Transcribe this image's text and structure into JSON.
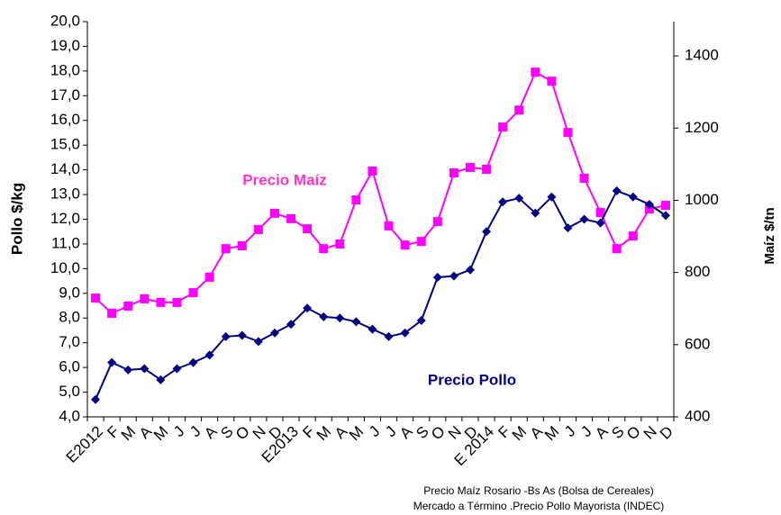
{
  "chart_data": {
    "type": "line",
    "categories": [
      "E2012",
      "F",
      "M",
      "A",
      "M",
      "J",
      "J",
      "A",
      "S",
      "O",
      "N",
      "D",
      "E2013",
      "F",
      "M",
      "A",
      "M",
      "J",
      "J",
      "A",
      "S",
      "O",
      "N",
      "D",
      "E 2014",
      "F",
      "M",
      "A",
      "M",
      "J",
      "J",
      "A",
      "S",
      "O",
      "N",
      "D"
    ],
    "series": [
      {
        "name": "Precio Maíz",
        "color": "#ff00ff",
        "marker": "square",
        "axis": "y2",
        "values": [
          729,
          687,
          707,
          727,
          717,
          717,
          744,
          787,
          866,
          874,
          919,
          964,
          949,
          921,
          866,
          879,
          1001,
          1081,
          929,
          876,
          886,
          941,
          1076,
          1091,
          1086,
          1203,
          1250,
          1355,
          1330,
          1188,
          1061,
          966,
          866,
          901,
          976,
          986
        ]
      },
      {
        "name": "Precio Pollo",
        "color": "#000080",
        "marker": "diamond",
        "values": [
          4.7,
          6.2,
          5.9,
          5.95,
          5.5,
          5.95,
          6.2,
          6.5,
          7.25,
          7.3,
          7.05,
          7.4,
          7.75,
          8.4,
          8.05,
          8.0,
          7.85,
          7.55,
          7.25,
          7.4,
          7.9,
          9.65,
          9.7,
          9.95,
          11.5,
          12.7,
          12.85,
          12.25,
          12.9,
          11.65,
          12.0,
          11.85,
          13.15,
          12.9,
          12.6,
          12.15
        ]
      }
    ],
    "ylabel": "Pollo $/kg",
    "y2label": "Maíz $/tn",
    "ylim": [
      4,
      20
    ],
    "yticks": [
      {
        "value": 4,
        "label": "4,0"
      },
      {
        "value": 5,
        "label": "5,0"
      },
      {
        "value": 6,
        "label": "6,0"
      },
      {
        "value": 7,
        "label": "7,0"
      },
      {
        "value": 8,
        "label": "8,0"
      },
      {
        "value": 9,
        "label": "9,0"
      },
      {
        "value": 10,
        "label": "10,0"
      },
      {
        "value": 11,
        "label": "11,0"
      },
      {
        "value": 12,
        "label": "12,0"
      },
      {
        "value": 13,
        "label": "13,0"
      },
      {
        "value": 14,
        "label": "14,0"
      },
      {
        "value": 15,
        "label": "15,0"
      },
      {
        "value": 16,
        "label": "16,0"
      },
      {
        "value": 17,
        "label": "17,0"
      },
      {
        "value": 18,
        "label": "18,0"
      },
      {
        "value": 19,
        "label": "19,0"
      },
      {
        "value": 20,
        "label": "20,0"
      }
    ],
    "y2lim": [
      400,
      1495
    ],
    "y2ticks": [
      400,
      600,
      800,
      1000,
      1200,
      1400
    ],
    "annotations": [
      "Precio Maíz",
      "Precio Pollo"
    ],
    "source": [
      "Precio Maíz Rosario -Bs As (Bolsa de Cereales)",
      "Mercado a Término .Precio Pollo Mayorista (INDEC)"
    ]
  }
}
